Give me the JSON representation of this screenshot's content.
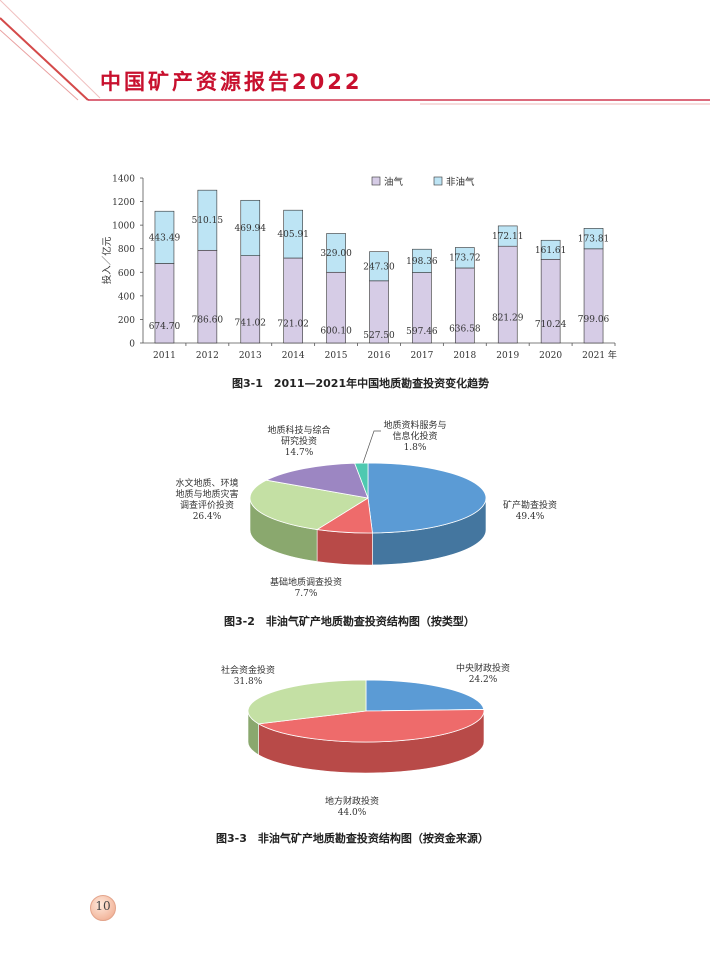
{
  "header": {
    "title": "中国矿产资源报告2022"
  },
  "page_number": "10",
  "figures": [
    {
      "caption": "图3-1　2011—2021年中国地质勘查投资变化趋势"
    },
    {
      "caption": "图3-2　非油气矿产地质勘查投资结构图（按类型）"
    },
    {
      "caption": "图3-3　非油气矿产地质勘查投资结构图（按资金来源）"
    }
  ],
  "chart_data": [
    {
      "type": "bar",
      "stacked": true,
      "ylabel": "投入／亿元",
      "ylim": [
        0,
        1400
      ],
      "yticks": [
        0,
        200,
        400,
        600,
        800,
        1000,
        1200,
        1400
      ],
      "categories": [
        "2011",
        "2012",
        "2013",
        "2014",
        "2015",
        "2016",
        "2017",
        "2018",
        "2019",
        "2020",
        "2021"
      ],
      "x_unit_suffix": "年",
      "legend_position": "top-right",
      "series": [
        {
          "name": "油气",
          "color": "#d6cce6",
          "values": [
            674.7,
            786.6,
            741.02,
            721.02,
            600.1,
            527.5,
            597.46,
            636.58,
            821.29,
            710.24,
            799.06
          ],
          "labels": [
            "674.70",
            "786.60",
            "741.02",
            "721.02",
            "600.10",
            "527.50",
            "597.46",
            "636.58",
            "821.29",
            "710.24",
            "799.06"
          ]
        },
        {
          "name": "非油气",
          "color": "#bde4f4",
          "values": [
            443.49,
            510.15,
            469.94,
            405.91,
            329.0,
            247.3,
            198.36,
            173.72,
            172.11,
            161.61,
            173.81
          ],
          "labels": [
            "443.49",
            "510.15",
            "469.94",
            "405.91",
            "329.00",
            "247.30",
            "198.36",
            "173.72",
            "172.11",
            "161.61",
            "173.81"
          ]
        }
      ]
    },
    {
      "type": "pie",
      "style": "3d",
      "slices": [
        {
          "label": "矿产勘查投资",
          "value": 49.4,
          "pct": "49.4%",
          "color": "#5b9bd5",
          "side": "#44769f"
        },
        {
          "label": "基础地质调查投资",
          "value": 7.7,
          "pct": "7.7%",
          "color": "#ee6b6b",
          "side": "#b84a48"
        },
        {
          "label": "水文地质、环境地质与地质灾害调查评价投资",
          "lines": [
            "水文地质、环境",
            "地质与地质灾害",
            "调查评价投资"
          ],
          "value": 26.4,
          "pct": "26.4%",
          "color": "#c4e0a4",
          "side": "#8aa86e"
        },
        {
          "label": "地质科技与综合研究投资",
          "lines": [
            "地质科技与综合",
            "研究投资"
          ],
          "value": 14.7,
          "pct": "14.7%",
          "color": "#9c86c2",
          "side": "#6e5d90"
        },
        {
          "label": "地质资料服务与信息化投资",
          "lines": [
            "地质资料服务与",
            "信息化投资"
          ],
          "value": 1.8,
          "pct": "1.8%",
          "color": "#4ec9b0",
          "side": "#36907e"
        }
      ]
    },
    {
      "type": "pie",
      "style": "3d",
      "slices": [
        {
          "label": "中央财政投资",
          "value": 24.2,
          "pct": "24.2%",
          "color": "#5b9bd5",
          "side": "#44769f"
        },
        {
          "label": "地方财政投资",
          "value": 44.0,
          "pct": "44.0%",
          "color": "#ee6b6b",
          "side": "#b84a48"
        },
        {
          "label": "社会资金投资",
          "value": 31.8,
          "pct": "31.8%",
          "color": "#c4e0a4",
          "side": "#8aa86e"
        }
      ]
    }
  ]
}
